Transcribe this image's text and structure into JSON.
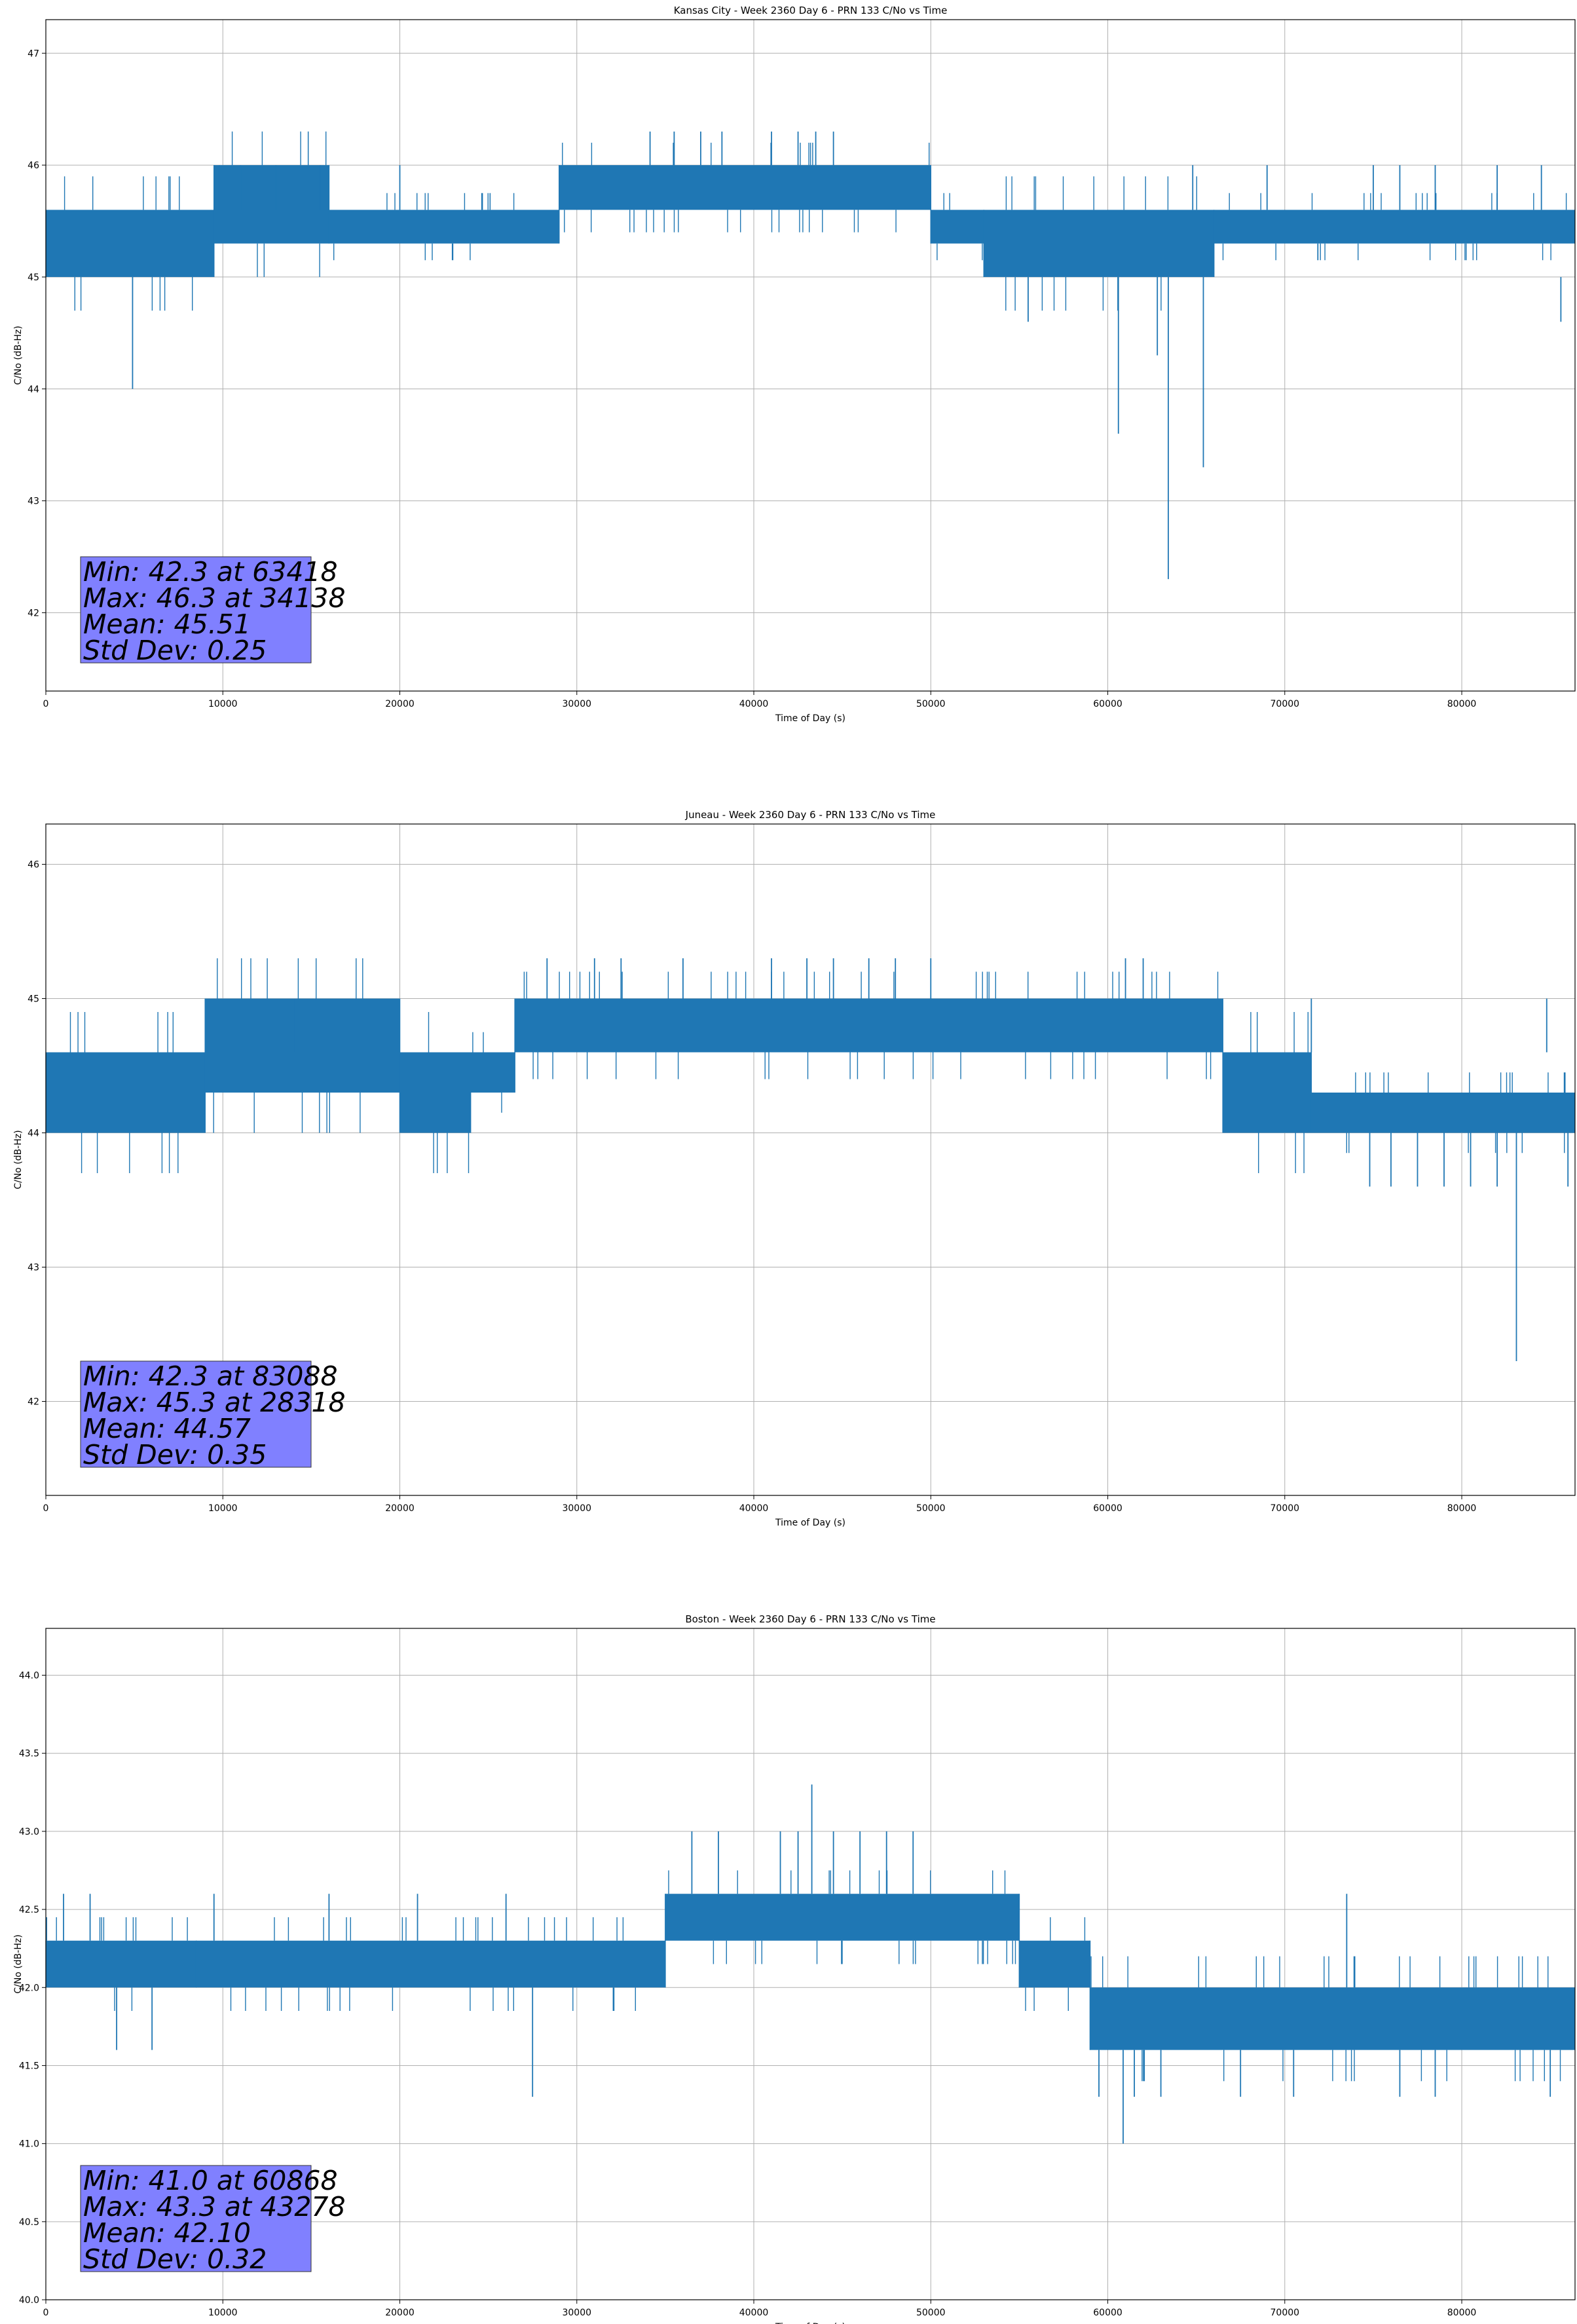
{
  "figure": {
    "series_color": "#1f77b4",
    "stats_box_color": "#8080ff",
    "grid_color": "#b0b0b0"
  },
  "chart_data": [
    {
      "type": "line",
      "title": "Kansas City - Week 2360 Day 6 - PRN 133 C/No vs Time",
      "xlabel": "Time of Day (s)",
      "ylabel": "C/No (dB-Hz)",
      "xlim": [
        0,
        86400
      ],
      "ylim": [
        41.3,
        47.3
      ],
      "xticks": [
        0,
        10000,
        20000,
        30000,
        40000,
        50000,
        60000,
        70000,
        80000
      ],
      "yticks": [
        42,
        43,
        44,
        45,
        46,
        47
      ],
      "ytick_labels": [
        "42",
        "43",
        "44",
        "45",
        "46",
        "47"
      ],
      "grid": true,
      "series": [
        {
          "name": "C/No",
          "segments": [
            {
              "x": [
                0,
                9500
              ],
              "low": 45.0,
              "high": 45.6
            },
            {
              "x": [
                9500,
                16000
              ],
              "low": 45.3,
              "high": 46.0
            },
            {
              "x": [
                16000,
                29000
              ],
              "low": 45.3,
              "high": 45.6
            },
            {
              "x": [
                29000,
                50000
              ],
              "low": 45.6,
              "high": 46.0
            },
            {
              "x": [
                50000,
                53000
              ],
              "low": 45.3,
              "high": 45.6
            },
            {
              "x": [
                53000,
                66000
              ],
              "low": 45.0,
              "high": 45.6
            },
            {
              "x": [
                66000,
                86400
              ],
              "low": 45.3,
              "high": 45.6
            }
          ],
          "spikes": [
            [
              4900,
              45.0,
              44.0
            ],
            [
              55500,
              45.0,
              44.6
            ],
            [
              60600,
              45.0,
              43.6
            ],
            [
              62800,
              45.0,
              44.3
            ],
            [
              63418,
              45.0,
              42.3
            ],
            [
              65400,
              45.0,
              43.3
            ],
            [
              85600,
              45.0,
              44.6
            ],
            [
              34138,
              46.0,
              46.3
            ],
            [
              35500,
              46.0,
              46.3
            ],
            [
              37000,
              46.0,
              46.3
            ],
            [
              38200,
              46.0,
              46.3
            ],
            [
              41000,
              46.0,
              46.3
            ],
            [
              42500,
              46.0,
              46.3
            ],
            [
              43500,
              46.0,
              46.3
            ],
            [
              44500,
              46.0,
              46.3
            ],
            [
              9800,
              45.6,
              46.0
            ],
            [
              11000,
              45.6,
              46.0
            ],
            [
              13000,
              45.6,
              46.0
            ],
            [
              15500,
              45.6,
              46.0
            ],
            [
              20000,
              45.6,
              46.0
            ],
            [
              64800,
              45.6,
              46.0
            ],
            [
              69000,
              45.6,
              46.0
            ],
            [
              75000,
              45.6,
              46.0
            ],
            [
              76500,
              45.6,
              46.0
            ],
            [
              78500,
              45.6,
              46.0
            ],
            [
              82000,
              45.6,
              46.0
            ],
            [
              84500,
              45.6,
              46.0
            ]
          ]
        }
      ],
      "stats": [
        "Min: 42.3 at 63418",
        "Max: 46.3 at 34138",
        "Mean: 45.51",
        "Std Dev: 0.25"
      ]
    },
    {
      "type": "line",
      "title": "Juneau - Week 2360 Day 6 - PRN 133 C/No vs Time",
      "xlabel": "Time of Day (s)",
      "ylabel": "C/No (dB-Hz)",
      "xlim": [
        0,
        86400
      ],
      "ylim": [
        41.3,
        46.3
      ],
      "xticks": [
        0,
        10000,
        20000,
        30000,
        40000,
        50000,
        60000,
        70000,
        80000
      ],
      "yticks": [
        42,
        43,
        44,
        45,
        46
      ],
      "ytick_labels": [
        "42",
        "43",
        "44",
        "45",
        "46"
      ],
      "grid": true,
      "series": [
        {
          "name": "C/No",
          "segments": [
            {
              "x": [
                0,
                9000
              ],
              "low": 44.0,
              "high": 44.6
            },
            {
              "x": [
                9000,
                20000
              ],
              "low": 44.3,
              "high": 45.0
            },
            {
              "x": [
                20000,
                24000
              ],
              "low": 44.0,
              "high": 44.6
            },
            {
              "x": [
                24000,
                26500
              ],
              "low": 44.3,
              "high": 44.6
            },
            {
              "x": [
                26500,
                66500
              ],
              "low": 44.6,
              "high": 45.0
            },
            {
              "x": [
                66500,
                71500
              ],
              "low": 44.0,
              "high": 44.6
            },
            {
              "x": [
                71500,
                86400
              ],
              "low": 44.0,
              "high": 44.3
            }
          ],
          "spikes": [
            [
              28318,
              45.0,
              45.3
            ],
            [
              31000,
              45.0,
              45.3
            ],
            [
              32500,
              45.0,
              45.3
            ],
            [
              36000,
              45.0,
              45.3
            ],
            [
              41000,
              45.0,
              45.3
            ],
            [
              43000,
              45.0,
              45.3
            ],
            [
              44500,
              45.0,
              45.3
            ],
            [
              46500,
              45.0,
              45.3
            ],
            [
              48000,
              45.0,
              45.3
            ],
            [
              50000,
              45.0,
              45.3
            ],
            [
              61000,
              45.0,
              45.3
            ],
            [
              62000,
              45.0,
              45.3
            ],
            [
              74800,
              44.0,
              43.6
            ],
            [
              76000,
              44.0,
              43.6
            ],
            [
              77500,
              44.0,
              43.6
            ],
            [
              79000,
              44.0,
              43.6
            ],
            [
              80500,
              44.0,
              43.6
            ],
            [
              82000,
              44.0,
              43.6
            ],
            [
              83088,
              44.0,
              42.3
            ],
            [
              86000,
              44.0,
              43.6
            ],
            [
              71500,
              44.6,
              45.0
            ],
            [
              84800,
              44.6,
              45.0
            ],
            [
              12000,
              44.6,
              45.0
            ],
            [
              14000,
              44.6,
              45.0
            ]
          ]
        }
      ],
      "stats": [
        "Min: 42.3 at 83088",
        "Max: 45.3 at 28318",
        "Mean: 44.57",
        "Std Dev: 0.35"
      ]
    },
    {
      "type": "line",
      "title": "Boston - Week 2360 Day 6 - PRN 133 C/No vs Time",
      "xlabel": "Time of Day (s)",
      "ylabel": "C/No (dB-Hz)",
      "xlim": [
        0,
        86400
      ],
      "ylim": [
        40.0,
        44.3
      ],
      "xticks": [
        0,
        10000,
        20000,
        30000,
        40000,
        50000,
        60000,
        70000,
        80000
      ],
      "yticks": [
        40.0,
        40.5,
        41.0,
        41.5,
        42.0,
        42.5,
        43.0,
        43.5,
        44.0
      ],
      "ytick_labels": [
        "40.0",
        "40.5",
        "41.0",
        "41.5",
        "42.0",
        "42.5",
        "43.0",
        "43.5",
        "44.0"
      ],
      "grid": true,
      "series": [
        {
          "name": "C/No",
          "segments": [
            {
              "x": [
                0,
                8500
              ],
              "low": 42.0,
              "high": 42.3
            },
            {
              "x": [
                8500,
                35000
              ],
              "low": 42.0,
              "high": 42.3
            },
            {
              "x": [
                35000,
                55000
              ],
              "low": 42.3,
              "high": 42.6
            },
            {
              "x": [
                55000,
                59000
              ],
              "low": 42.0,
              "high": 42.3
            },
            {
              "x": [
                59000,
                86400
              ],
              "low": 41.6,
              "high": 42.0
            }
          ],
          "spikes": [
            [
              27500,
              42.0,
              41.3
            ],
            [
              60868,
              41.6,
              41.0
            ],
            [
              59500,
              41.6,
              41.3
            ],
            [
              61500,
              41.6,
              41.3
            ],
            [
              63000,
              41.6,
              41.3
            ],
            [
              67500,
              41.6,
              41.3
            ],
            [
              70500,
              41.6,
              41.3
            ],
            [
              76500,
              41.6,
              41.3
            ],
            [
              78500,
              41.6,
              41.3
            ],
            [
              85000,
              41.6,
              41.3
            ],
            [
              43278,
              42.6,
              43.3
            ],
            [
              41500,
              42.6,
              43.0
            ],
            [
              42500,
              42.6,
              43.0
            ],
            [
              44500,
              42.6,
              43.0
            ],
            [
              46000,
              42.6,
              43.0
            ],
            [
              47500,
              42.6,
              43.0
            ],
            [
              49000,
              42.6,
              43.0
            ],
            [
              36500,
              42.6,
              43.0
            ],
            [
              38000,
              42.6,
              43.0
            ],
            [
              73500,
              42.0,
              42.6
            ],
            [
              1000,
              42.3,
              42.6
            ],
            [
              2500,
              42.3,
              42.6
            ],
            [
              9500,
              42.3,
              42.6
            ],
            [
              16000,
              42.3,
              42.6
            ],
            [
              21000,
              42.3,
              42.6
            ],
            [
              26000,
              42.3,
              42.6
            ],
            [
              4000,
              42.0,
              41.6
            ],
            [
              6000,
              42.0,
              41.6
            ]
          ]
        }
      ],
      "stats": [
        "Min: 41.0 at 60868",
        "Max: 43.3 at 43278",
        "Mean: 42.10",
        "Std Dev: 0.32"
      ]
    }
  ]
}
